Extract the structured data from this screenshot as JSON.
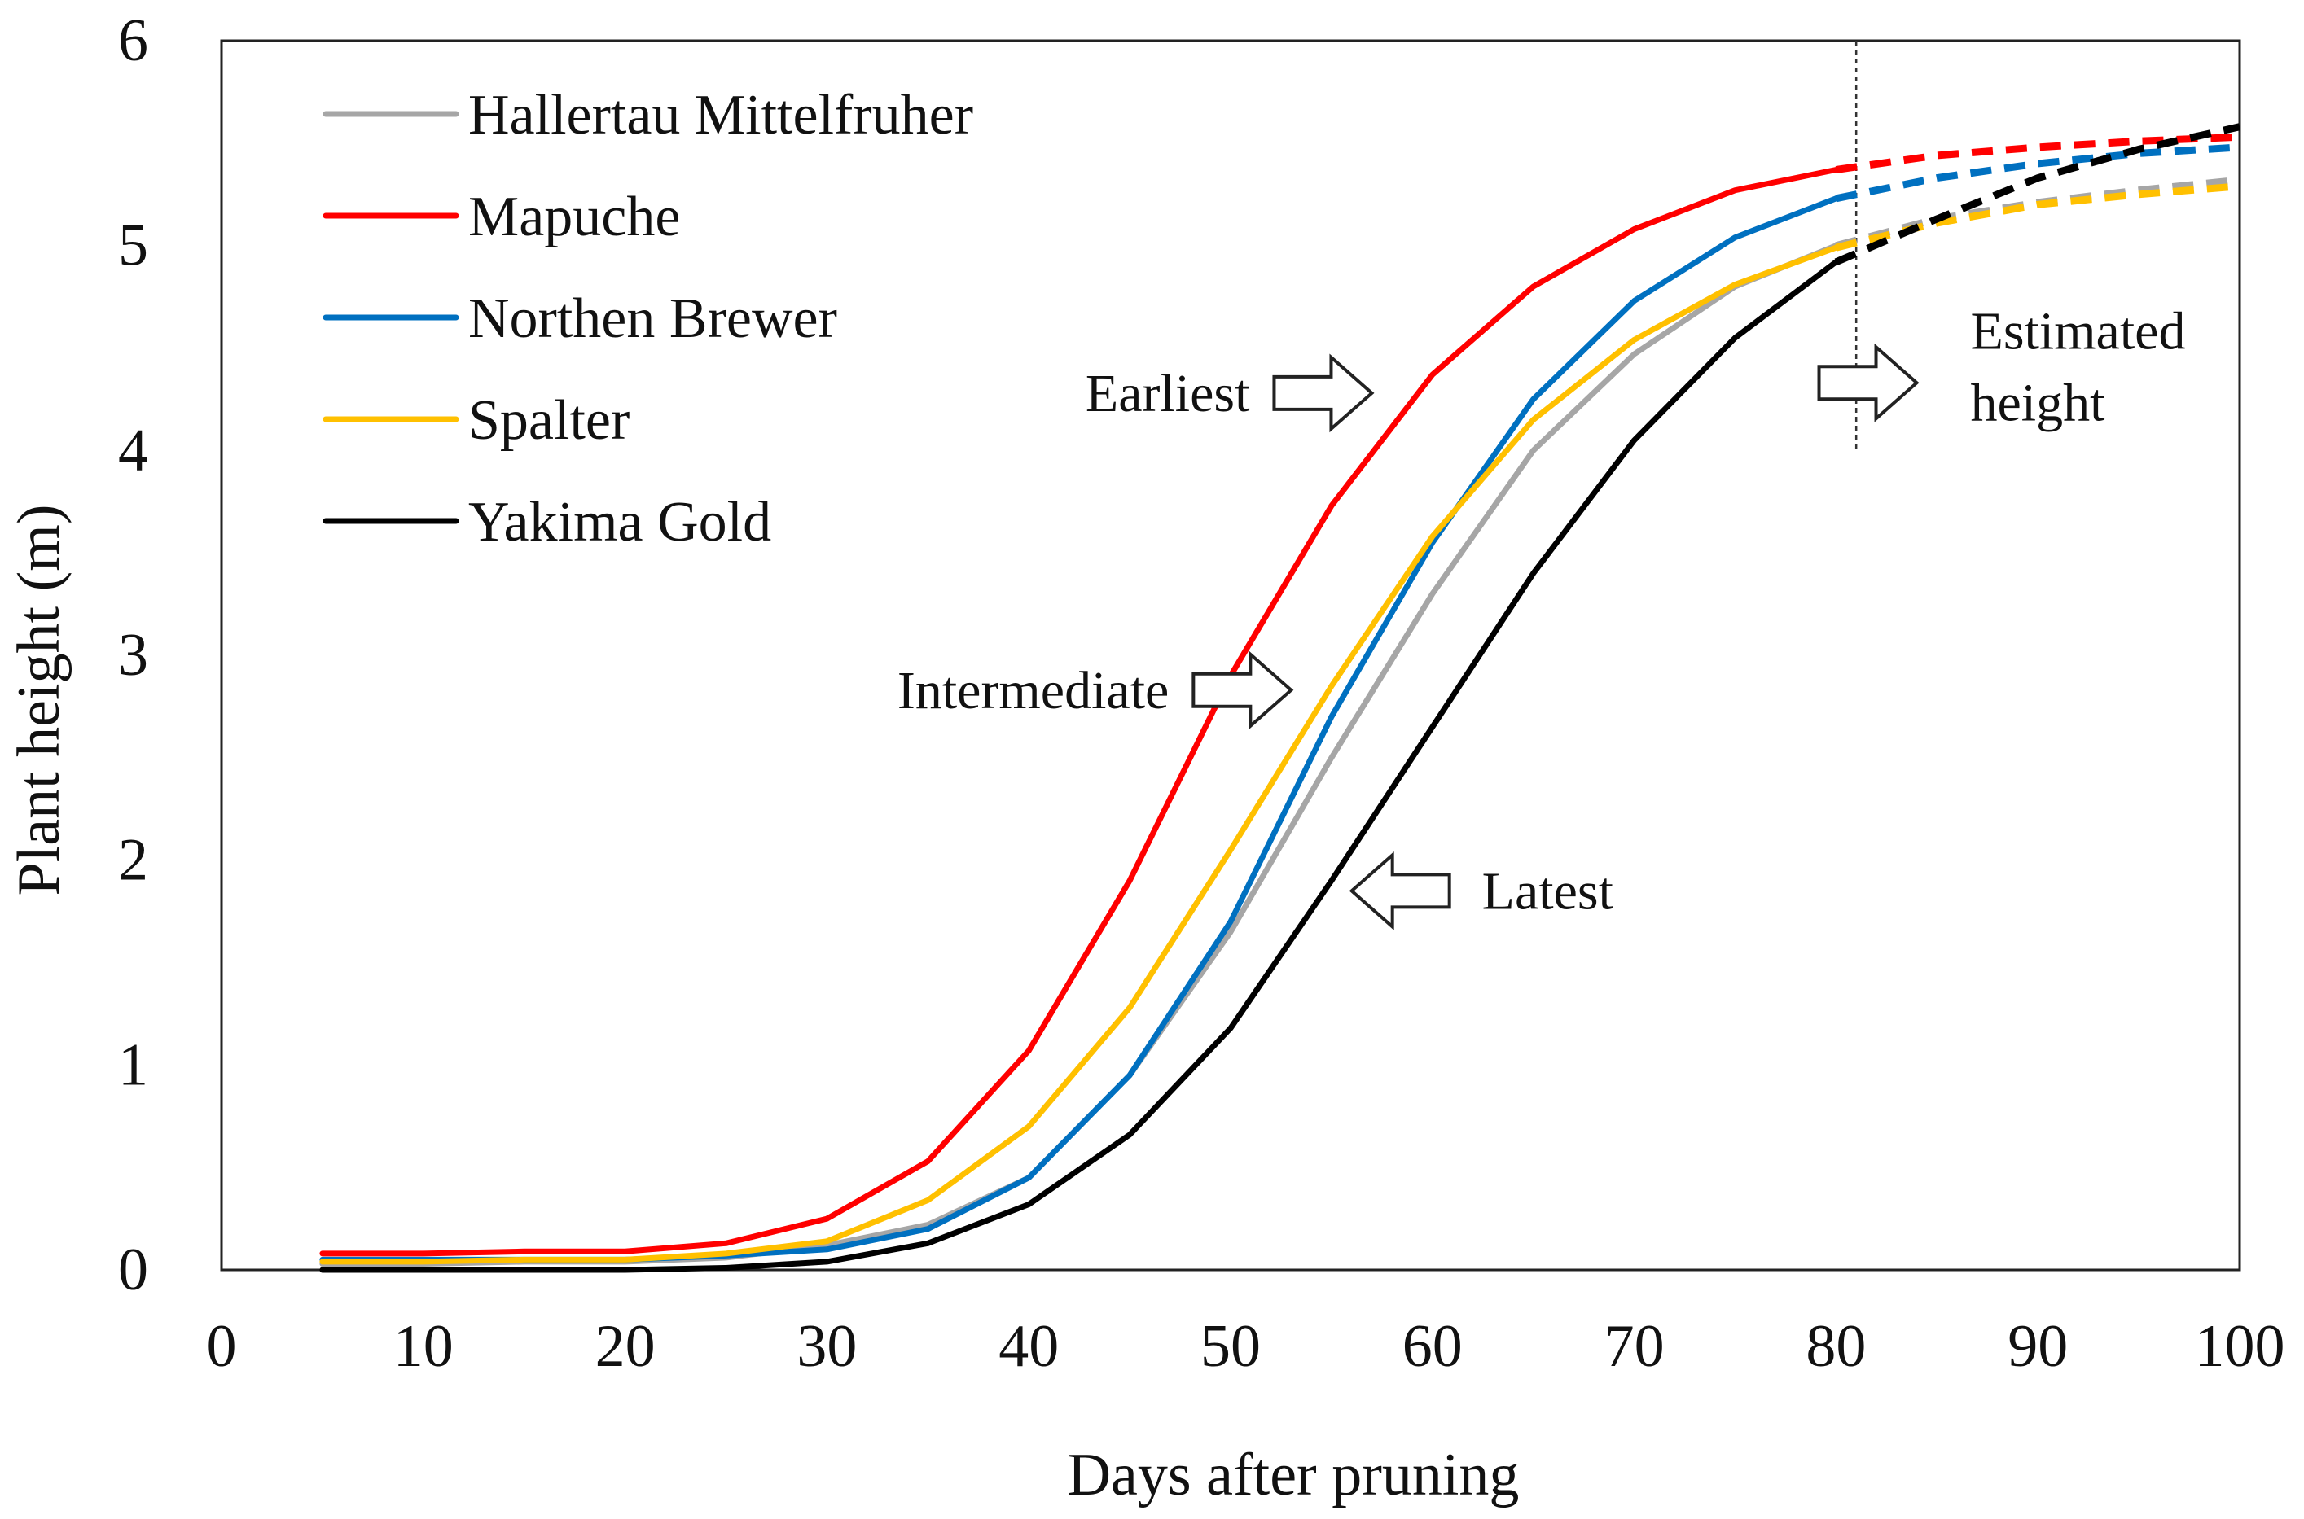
{
  "chart_data": {
    "type": "line",
    "title": "",
    "xlabel": "Days after pruning",
    "ylabel": "Plant height  (m)",
    "xlim": [
      0,
      100
    ],
    "ylim": [
      0,
      6
    ],
    "xticks": [
      0,
      10,
      20,
      30,
      40,
      50,
      60,
      70,
      80,
      90,
      100
    ],
    "yticks": [
      0,
      1,
      2,
      3,
      4,
      5,
      6
    ],
    "grid": false,
    "legend_position": "top-left",
    "estimate_start_day": 81,
    "series": [
      {
        "name": "Hallertau Mittelfruher",
        "color": "#a6a6a6",
        "x": [
          5,
          10,
          15,
          20,
          25,
          30,
          35,
          40,
          45,
          50,
          55,
          60,
          65,
          70,
          75,
          80
        ],
        "values": [
          0.03,
          0.03,
          0.04,
          0.04,
          0.06,
          0.12,
          0.22,
          0.45,
          0.95,
          1.65,
          2.5,
          3.3,
          4.0,
          4.47,
          4.8,
          5.0
        ],
        "estimated_x": [
          80,
          85,
          90,
          95,
          100
        ],
        "estimated_values": [
          5.0,
          5.13,
          5.21,
          5.27,
          5.32
        ]
      },
      {
        "name": "Mapuche",
        "color": "#ff0000",
        "x": [
          5,
          10,
          15,
          20,
          25,
          30,
          35,
          40,
          45,
          50,
          55,
          60,
          65,
          70,
          75,
          80
        ],
        "values": [
          0.08,
          0.08,
          0.09,
          0.09,
          0.13,
          0.25,
          0.53,
          1.07,
          1.9,
          2.9,
          3.73,
          4.37,
          4.8,
          5.08,
          5.27,
          5.37
        ],
        "estimated_x": [
          80,
          85,
          90,
          95,
          100
        ],
        "estimated_values": [
          5.37,
          5.44,
          5.48,
          5.51,
          5.53
        ]
      },
      {
        "name": "Northen Brewer",
        "color": "#0070c0",
        "x": [
          5,
          10,
          15,
          20,
          25,
          30,
          35,
          40,
          45,
          50,
          55,
          60,
          65,
          70,
          75,
          80
        ],
        "values": [
          0.05,
          0.05,
          0.05,
          0.05,
          0.07,
          0.1,
          0.2,
          0.45,
          0.95,
          1.7,
          2.7,
          3.55,
          4.25,
          4.73,
          5.04,
          5.23
        ],
        "estimated_x": [
          80,
          85,
          90,
          95,
          100
        ],
        "estimated_values": [
          5.23,
          5.33,
          5.4,
          5.45,
          5.48
        ]
      },
      {
        "name": "Spalter",
        "color": "#ffc000",
        "x": [
          5,
          10,
          15,
          20,
          25,
          30,
          35,
          40,
          45,
          50,
          55,
          60,
          65,
          70,
          75,
          80
        ],
        "values": [
          0.04,
          0.04,
          0.05,
          0.05,
          0.08,
          0.14,
          0.34,
          0.7,
          1.28,
          2.05,
          2.85,
          3.58,
          4.15,
          4.54,
          4.81,
          4.99
        ],
        "estimated_x": [
          80,
          85,
          90,
          95,
          100
        ],
        "estimated_values": [
          4.99,
          5.11,
          5.2,
          5.25,
          5.29
        ]
      },
      {
        "name": "Yakima Gold",
        "color": "#000000",
        "x": [
          5,
          10,
          15,
          20,
          25,
          30,
          35,
          40,
          45,
          50,
          55,
          60,
          65,
          70,
          75,
          80
        ],
        "values": [
          0.0,
          0.0,
          0.0,
          0.0,
          0.01,
          0.04,
          0.13,
          0.32,
          0.66,
          1.18,
          1.9,
          2.65,
          3.4,
          4.05,
          4.55,
          4.92
        ],
        "estimated_x": [
          80,
          85,
          90,
          95,
          100
        ],
        "estimated_values": [
          4.92,
          5.13,
          5.33,
          5.47,
          5.58
        ]
      }
    ],
    "annotations": [
      {
        "text": "Earliest",
        "arrow": "right",
        "target_x": 57,
        "target_y": 4.28
      },
      {
        "text": "Intermediate",
        "arrow": "right",
        "target_x": 53,
        "target_y": 2.83
      },
      {
        "text": "Latest",
        "arrow": "left",
        "target_x": 56,
        "target_y": 1.85
      },
      {
        "text_lines": [
          "Estimated",
          "height"
        ],
        "arrow": "right",
        "target_x": 84,
        "target_y": 4.33
      }
    ]
  }
}
